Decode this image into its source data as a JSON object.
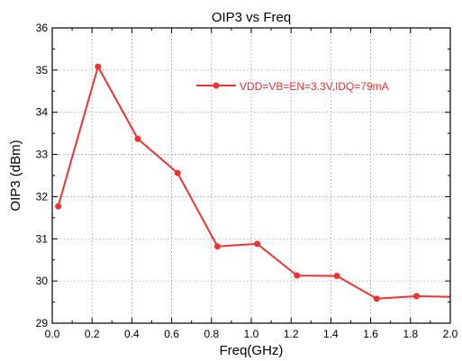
{
  "chart_data": {
    "type": "line",
    "title": "OIP3 vs Freq",
    "xlabel": "Freq(GHz)",
    "ylabel": "OIP3 (dBm)",
    "xlim": [
      0.0,
      2.0
    ],
    "ylim": [
      29,
      36
    ],
    "xticks": [
      "0.0",
      "0.2",
      "0.4",
      "0.6",
      "0.8",
      "1.0",
      "1.2",
      "1.4",
      "1.6",
      "1.8",
      "2.0"
    ],
    "yticks": [
      "29",
      "30",
      "31",
      "32",
      "33",
      "34",
      "35",
      "36"
    ],
    "grid": true,
    "legend": "top-right",
    "series": [
      {
        "name": "VDD=VB=EN=3.3V,IDQ=79mA",
        "color": "#ee3333",
        "x": [
          0.03,
          0.23,
          0.43,
          0.63,
          0.83,
          1.03,
          1.23,
          1.43,
          1.63,
          1.83,
          2.03
        ],
        "y": [
          31.77,
          35.08,
          33.37,
          32.56,
          30.82,
          30.88,
          30.13,
          30.12,
          29.58,
          29.64,
          29.62
        ],
        "markers": [
          true,
          true,
          true,
          true,
          true,
          true,
          true,
          true,
          true,
          true,
          false
        ]
      }
    ]
  }
}
